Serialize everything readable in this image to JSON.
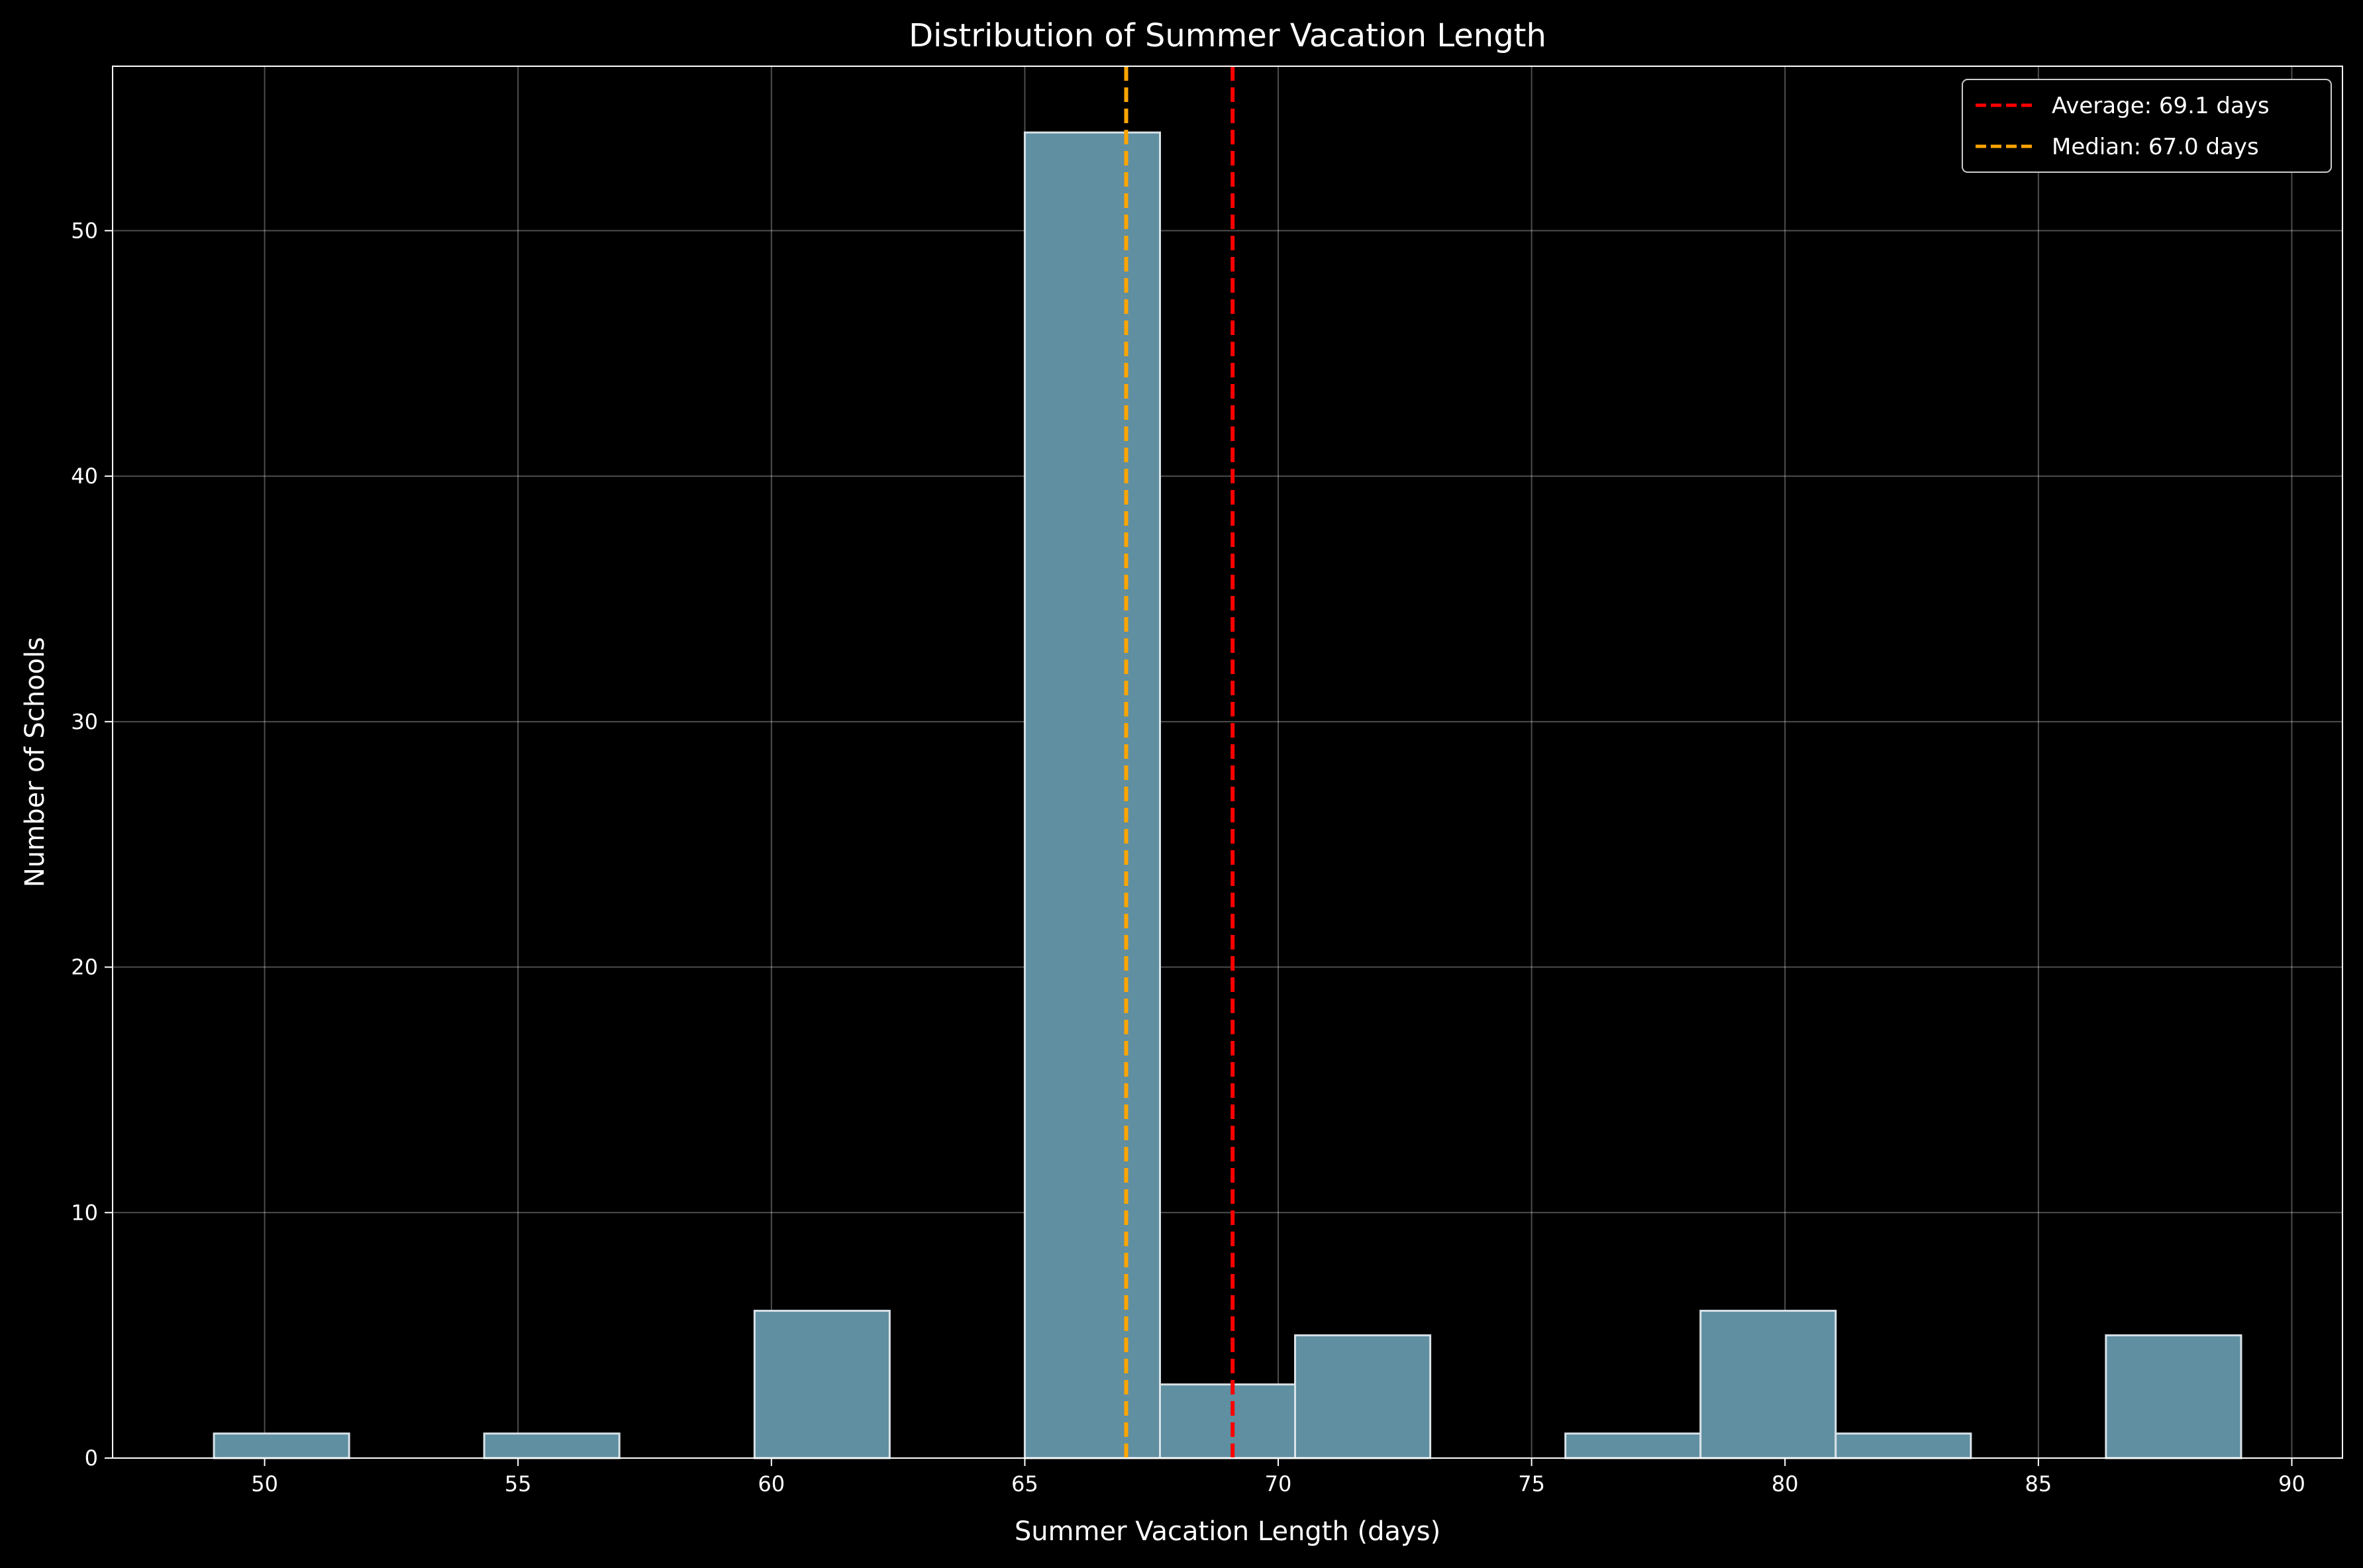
{
  "chart_data": {
    "type": "bar",
    "title": "Distribution of Summer Vacation Length",
    "xlabel": "Summer Vacation Length (days)",
    "ylabel": "Number of Schools",
    "xlim": [
      47,
      91
    ],
    "ylim": [
      0,
      56.7
    ],
    "xticks": [
      50,
      55,
      60,
      65,
      70,
      75,
      80,
      85,
      90
    ],
    "yticks": [
      0,
      10,
      20,
      30,
      40,
      50
    ],
    "grid": true,
    "legend_position": "top-right",
    "bins": [
      {
        "start": 49.0,
        "end": 51.667,
        "count": 1
      },
      {
        "start": 51.667,
        "end": 54.333,
        "count": 0
      },
      {
        "start": 54.333,
        "end": 57.0,
        "count": 1
      },
      {
        "start": 57.0,
        "end": 59.667,
        "count": 0
      },
      {
        "start": 59.667,
        "end": 62.333,
        "count": 6
      },
      {
        "start": 62.333,
        "end": 65.0,
        "count": 0
      },
      {
        "start": 65.0,
        "end": 67.667,
        "count": 54
      },
      {
        "start": 67.667,
        "end": 70.333,
        "count": 3
      },
      {
        "start": 70.333,
        "end": 73.0,
        "count": 5
      },
      {
        "start": 73.0,
        "end": 75.667,
        "count": 0
      },
      {
        "start": 75.667,
        "end": 78.333,
        "count": 1
      },
      {
        "start": 78.333,
        "end": 81.0,
        "count": 6
      },
      {
        "start": 81.0,
        "end": 83.667,
        "count": 1
      },
      {
        "start": 83.667,
        "end": 86.333,
        "count": 0
      },
      {
        "start": 86.333,
        "end": 89.0,
        "count": 5
      }
    ],
    "reference_lines": [
      {
        "name": "Average: 69.1 days",
        "value": 69.1,
        "color": "#ff0000"
      },
      {
        "name": "Median: 67.0 days",
        "value": 67.0,
        "color": "#ffa500"
      }
    ],
    "bar_color": "#5f8fa0",
    "bar_edge_color": "#d9e2e8",
    "grid_color": "#ffffff",
    "background_color": "#000000"
  }
}
